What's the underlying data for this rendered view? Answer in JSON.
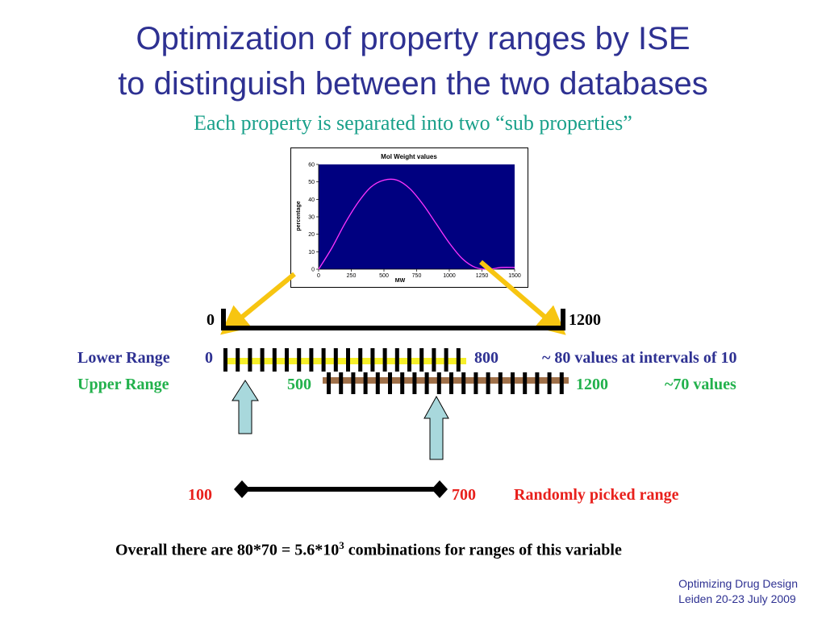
{
  "slide": {
    "title_line1": "Optimization of property ranges by ISE",
    "title_line2": "to distinguish between the two databases",
    "subtitle": "Each property is separated into two “sub properties”",
    "range_start": "0",
    "range_end": "1200",
    "lower_range": {
      "label": "Lower Range",
      "start": "0",
      "end": "800",
      "note": "~ 80 values at intervals of 10"
    },
    "upper_range": {
      "label": "Upper Range",
      "start": "500",
      "end": "1200",
      "note": "~70 values"
    },
    "picked": {
      "start": "100",
      "end": "700",
      "label": "Randomly picked range"
    },
    "summary_prefix": "Overall there are 80*70 = 5.6*10",
    "summary_sup": "3",
    "summary_suffix": " combinations for ranges of this variable",
    "footer_line1": "Optimizing Drug Design",
    "footer_line2": "Leiden 20-23 July 2009"
  },
  "colors": {
    "title": "#2e3192",
    "subtitle": "#19a08a",
    "lower": "#2e3192",
    "upper": "#22b14c",
    "picked": "#e8201c",
    "plot_bg": "#000080",
    "curve": "#ff33ff",
    "arrow": "#f7c511"
  },
  "chart_data": {
    "type": "line",
    "title": "Mol Weight values",
    "xlabel": "MW",
    "ylabel": "percentage",
    "xlim": [
      0,
      1500
    ],
    "ylim": [
      0,
      60
    ],
    "xticks": [
      "0",
      "250",
      "500",
      "750",
      "1000",
      "1250",
      "1500"
    ],
    "yticks": [
      "0",
      "10",
      "20",
      "30",
      "40",
      "50",
      "60"
    ],
    "x": [
      0,
      100,
      200,
      300,
      400,
      500,
      600,
      700,
      800,
      900,
      1000,
      1100,
      1200,
      1300,
      1400,
      1500
    ],
    "y": [
      0,
      12,
      26,
      38,
      47,
      51,
      51,
      46,
      37,
      26,
      15,
      6,
      1,
      0,
      1,
      1
    ]
  }
}
